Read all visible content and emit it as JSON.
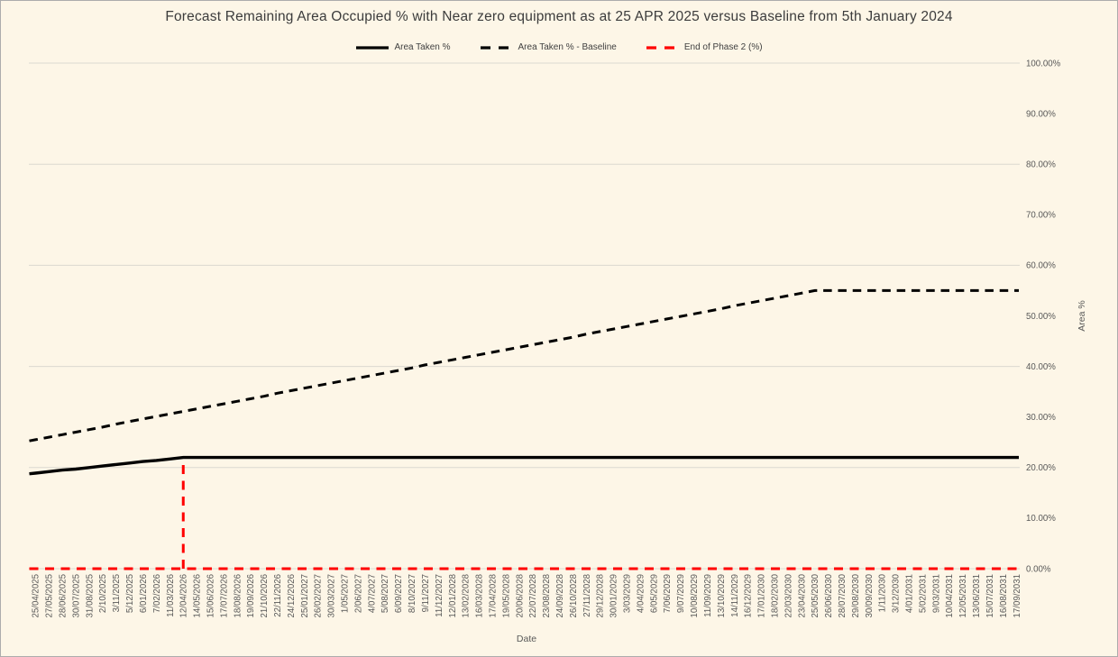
{
  "colors": {
    "background": "#FDF6E7",
    "canvas_border": "#ACACAC",
    "grid": "#DCD9D0",
    "tick_text": "#595959",
    "title_text": "#3C3C3C",
    "legend_text": "#404040",
    "series_black": "#000000",
    "phase_red": "#FF0000"
  },
  "chart_data": {
    "type": "line",
    "title": "Forecast Remaining Area Occupied % with Near zero equipment as at 25 APR 2025 versus Baseline from 5th January 2024",
    "xlabel": "Date",
    "ylabel": "Area %",
    "ylim": [
      0,
      100
    ],
    "y_tick_step": 10,
    "y_tick_suffix": "%",
    "gridline_step": 20,
    "grid": true,
    "legend_position": "top-center",
    "x_label_rotation": -90,
    "categories": [
      "25/04/2025",
      "27/05/2025",
      "28/06/2025",
      "30/07/2025",
      "31/08/2025",
      "2/10/2025",
      "3/11/2025",
      "5/12/2025",
      "6/01/2026",
      "7/02/2026",
      "11/03/2026",
      "12/04/2026",
      "14/05/2026",
      "15/06/2026",
      "17/07/2026",
      "18/08/2026",
      "19/09/2026",
      "21/10/2026",
      "22/11/2026",
      "24/12/2026",
      "25/01/2027",
      "26/02/2027",
      "30/03/2027",
      "1/05/2027",
      "2/06/2027",
      "4/07/2027",
      "5/08/2027",
      "6/09/2027",
      "8/10/2027",
      "9/11/2027",
      "11/12/2027",
      "12/01/2028",
      "13/02/2028",
      "16/03/2028",
      "17/04/2028",
      "19/05/2028",
      "20/06/2028",
      "22/07/2028",
      "23/08/2028",
      "24/09/2028",
      "26/10/2028",
      "27/11/2028",
      "29/12/2028",
      "30/01/2029",
      "3/03/2029",
      "4/04/2029",
      "6/05/2029",
      "7/06/2029",
      "9/07/2029",
      "10/08/2029",
      "11/09/2029",
      "13/10/2029",
      "14/11/2029",
      "16/12/2029",
      "17/01/2030",
      "18/02/2030",
      "22/03/2030",
      "23/04/2030",
      "25/05/2030",
      "26/06/2030",
      "28/07/2030",
      "29/08/2030",
      "30/09/2030",
      "1/11/2030",
      "3/12/2030",
      "4/01/2031",
      "5/02/2031",
      "9/03/2031",
      "10/04/2031",
      "12/05/2031",
      "13/06/2031",
      "15/07/2031",
      "16/08/2031",
      "17/09/2031"
    ],
    "series": [
      {
        "name": "Area Taken %",
        "color": "#000000",
        "line_style": "solid",
        "values": [
          18.9,
          19.2,
          19.5,
          19.7,
          20.0,
          20.3,
          20.6,
          20.9,
          21.2,
          21.4,
          21.7,
          22.0,
          22.0,
          22.0,
          22.0,
          22.0,
          22.0,
          22.0,
          22.0,
          22.0,
          22.0,
          22.0,
          22.0,
          22.0,
          22.0,
          22.0,
          22.0,
          22.0,
          22.0,
          22.0,
          22.0,
          22.0,
          22.0,
          22.0,
          22.0,
          22.0,
          22.0,
          22.0,
          22.0,
          22.0,
          22.0,
          22.0,
          22.0,
          22.0,
          22.0,
          22.0,
          22.0,
          22.0,
          22.0,
          22.0,
          22.0,
          22.0,
          22.0,
          22.0,
          22.0,
          22.0,
          22.0,
          22.0,
          22.0,
          22.0,
          22.0,
          22.0,
          22.0,
          22.0,
          22.0,
          22.0,
          22.0,
          22.0,
          22.0,
          22.0,
          22.0,
          22.0,
          22.0,
          22.0
        ]
      },
      {
        "name": "Area Taken % - Baseline",
        "color": "#000000",
        "line_style": "dashed",
        "values": [
          25.5,
          26.0,
          26.5,
          27.0,
          27.5,
          28.0,
          28.6,
          29.1,
          29.6,
          30.1,
          30.6,
          31.1,
          31.6,
          32.1,
          32.6,
          33.1,
          33.6,
          34.1,
          34.7,
          35.2,
          35.7,
          36.2,
          36.7,
          37.2,
          37.7,
          38.2,
          38.7,
          39.2,
          39.7,
          40.3,
          40.8,
          41.3,
          41.8,
          42.3,
          42.8,
          43.3,
          43.8,
          44.3,
          44.8,
          45.3,
          45.8,
          46.4,
          46.9,
          47.4,
          47.9,
          48.4,
          48.9,
          49.4,
          49.9,
          50.4,
          50.9,
          51.4,
          52.0,
          52.5,
          53.0,
          53.5,
          54.0,
          54.5,
          55.0,
          55.0,
          55.0,
          55.0,
          55.0,
          55.0,
          55.0,
          55.0,
          55.0,
          55.0,
          55.0,
          55.0,
          55.0,
          55.0,
          55.0,
          55.0
        ]
      },
      {
        "name": "End of Phase 2 (%)",
        "color": "#FF0000",
        "line_style": "dashed",
        "render": "spike",
        "values": [
          0,
          0,
          0,
          0,
          0,
          0,
          0,
          0,
          0,
          0,
          0,
          22,
          0,
          0,
          0,
          0,
          0,
          0,
          0,
          0,
          0,
          0,
          0,
          0,
          0,
          0,
          0,
          0,
          0,
          0,
          0,
          0,
          0,
          0,
          0,
          0,
          0,
          0,
          0,
          0,
          0,
          0,
          0,
          0,
          0,
          0,
          0,
          0,
          0,
          0,
          0,
          0,
          0,
          0,
          0,
          0,
          0,
          0,
          0,
          0,
          0,
          0,
          0,
          0,
          0,
          0,
          0,
          0,
          0,
          0,
          0,
          0,
          0,
          0
        ]
      }
    ]
  }
}
